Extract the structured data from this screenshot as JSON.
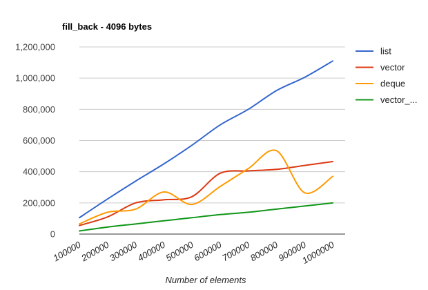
{
  "chart_data": {
    "type": "line",
    "title": "fill_back - 4096 bytes",
    "xlabel": "Number of elements",
    "ylabel": "",
    "x": [
      100000,
      200000,
      300000,
      400000,
      500000,
      600000,
      700000,
      800000,
      900000,
      1000000
    ],
    "x_tick_labels": [
      "100000",
      "200000",
      "300000",
      "400000",
      "500000",
      "600000",
      "700000",
      "800000",
      "900000",
      "1000000"
    ],
    "ylim": [
      0,
      1200000
    ],
    "y_ticks": [
      0,
      200000,
      400000,
      600000,
      800000,
      1000000,
      1200000
    ],
    "y_tick_labels": [
      "0",
      "200,000",
      "400,000",
      "600,000",
      "800,000",
      "1,000,000",
      "1,200,000"
    ],
    "grid": true,
    "legend_position": "right",
    "smooth": true,
    "series": [
      {
        "name": "list",
        "color": "#3366cc",
        "values": [
          105000,
          225000,
          340000,
          450000,
          570000,
          700000,
          800000,
          920000,
          1005000,
          1110000
        ]
      },
      {
        "name": "vector",
        "color": "#dc3912",
        "values": [
          55000,
          110000,
          200000,
          220000,
          240000,
          390000,
          405000,
          415000,
          440000,
          465000
        ]
      },
      {
        "name": "deque",
        "color": "#ff9900",
        "values": [
          65000,
          140000,
          160000,
          270000,
          190000,
          305000,
          420000,
          535000,
          265000,
          370000
        ]
      },
      {
        "name": "vector_...",
        "color": "#109618",
        "values": [
          20000,
          45000,
          65000,
          85000,
          105000,
          125000,
          140000,
          160000,
          180000,
          200000
        ]
      }
    ]
  }
}
